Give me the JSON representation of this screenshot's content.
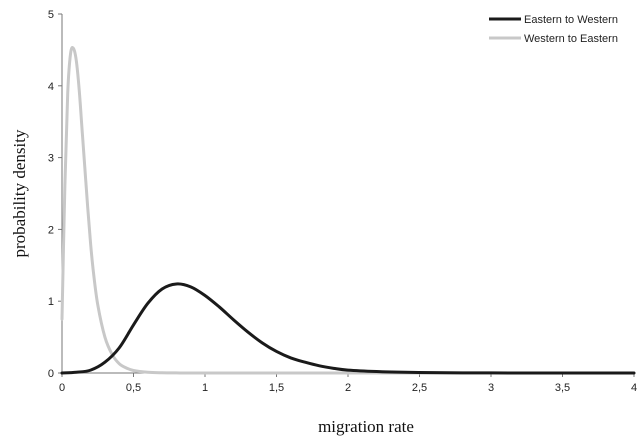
{
  "chart_data": {
    "type": "line",
    "title": "",
    "xlabel": "migration rate",
    "ylabel": "probability density",
    "xlim": [
      0,
      4
    ],
    "ylim": [
      0,
      5
    ],
    "x_ticks": [
      "0",
      "0,5",
      "1",
      "1,5",
      "2",
      "2,5",
      "3",
      "3,5",
      "4"
    ],
    "y_ticks": [
      "0",
      "1",
      "2",
      "3",
      "4",
      "5"
    ],
    "grid": false,
    "legend_position": "top-right",
    "series": [
      {
        "name": "Eastern to Western",
        "color": "#1a1a1a",
        "x": [
          0,
          0.1,
          0.2,
          0.3,
          0.4,
          0.5,
          0.6,
          0.7,
          0.8,
          0.9,
          1.0,
          1.1,
          1.2,
          1.3,
          1.4,
          1.5,
          1.6,
          1.7,
          1.8,
          1.9,
          2.0,
          2.2,
          2.4,
          2.6,
          2.8,
          3.0,
          3.5,
          4.0
        ],
        "y": [
          0,
          0.01,
          0.04,
          0.15,
          0.35,
          0.67,
          0.97,
          1.17,
          1.24,
          1.2,
          1.08,
          0.92,
          0.74,
          0.57,
          0.42,
          0.3,
          0.21,
          0.15,
          0.1,
          0.065,
          0.04,
          0.02,
          0.01,
          0.005,
          0.002,
          0.001,
          0,
          0
        ]
      },
      {
        "name": "Western to Eastern",
        "color": "#c8c8c8",
        "x": [
          0,
          0.02,
          0.04,
          0.06,
          0.08,
          0.1,
          0.12,
          0.14,
          0.16,
          0.18,
          0.2,
          0.22,
          0.25,
          0.3,
          0.35,
          0.4,
          0.45,
          0.5,
          0.6,
          0.7,
          0.8,
          1.0,
          1.5,
          2.0,
          3.0,
          4.0
        ],
        "y": [
          0.75,
          2.6,
          3.9,
          4.45,
          4.52,
          4.35,
          3.95,
          3.4,
          2.85,
          2.3,
          1.8,
          1.4,
          0.95,
          0.5,
          0.26,
          0.13,
          0.07,
          0.035,
          0.01,
          0.003,
          0.001,
          0,
          0,
          0,
          0,
          0
        ]
      }
    ]
  }
}
